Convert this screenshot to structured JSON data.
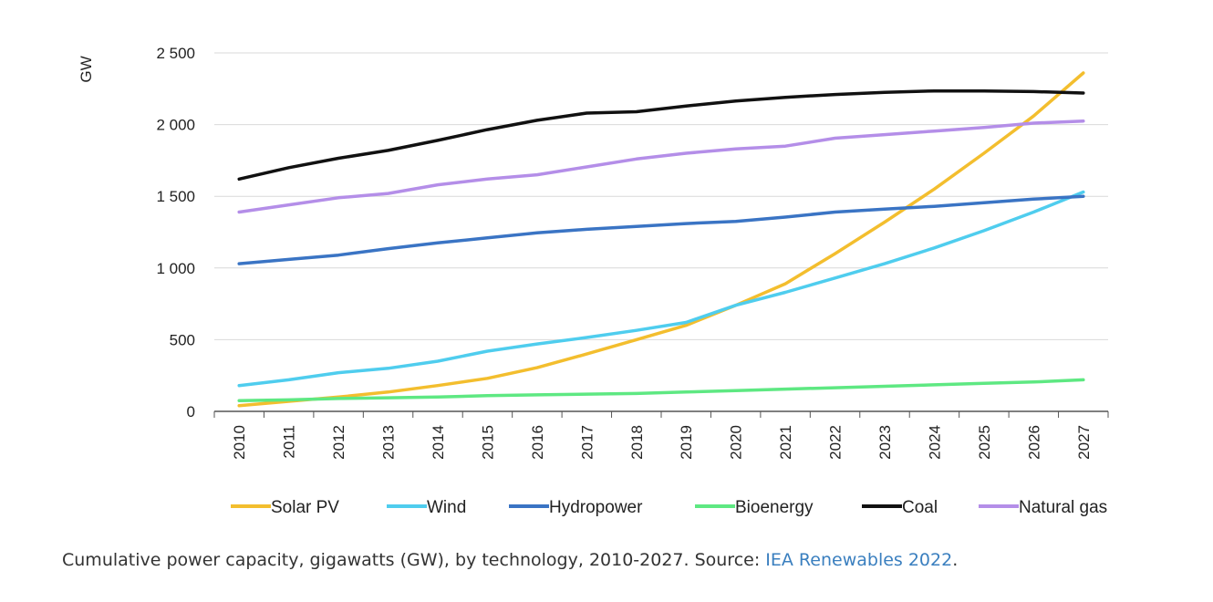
{
  "chart_data": {
    "type": "line",
    "ylabel": "GW",
    "ylim": [
      0,
      2500
    ],
    "yticks": [
      0,
      500,
      1000,
      1500,
      2000,
      2500
    ],
    "ytick_labels": [
      "0",
      "500",
      "1 000",
      "1 500",
      "2 000",
      "2 500"
    ],
    "x": [
      "2010",
      "2011",
      "2012",
      "2013",
      "2014",
      "2015",
      "2016",
      "2017",
      "2018",
      "2019",
      "2020",
      "2021",
      "2022",
      "2023",
      "2024",
      "2025",
      "2026",
      "2027"
    ],
    "grid": "horizontal",
    "legend_position": "bottom",
    "series": [
      {
        "name": "Solar PV",
        "color": "#f3be2e",
        "values": [
          40,
          70,
          100,
          135,
          180,
          230,
          305,
          400,
          500,
          600,
          740,
          890,
          1100,
          1320,
          1550,
          1800,
          2060,
          2360
        ]
      },
      {
        "name": "Wind",
        "color": "#4fcdee",
        "values": [
          180,
          220,
          270,
          300,
          350,
          420,
          470,
          515,
          565,
          620,
          740,
          830,
          930,
          1030,
          1140,
          1260,
          1390,
          1530
        ]
      },
      {
        "name": "Hydropower",
        "color": "#3a74c4",
        "values": [
          1030,
          1060,
          1090,
          1135,
          1175,
          1210,
          1245,
          1270,
          1290,
          1310,
          1325,
          1355,
          1390,
          1410,
          1430,
          1455,
          1480,
          1500
        ]
      },
      {
        "name": "Bioenergy",
        "color": "#5ee882",
        "values": [
          75,
          80,
          90,
          95,
          100,
          110,
          115,
          120,
          125,
          135,
          145,
          155,
          165,
          175,
          185,
          195,
          205,
          220
        ]
      },
      {
        "name": "Coal",
        "color": "#111111",
        "values": [
          1620,
          1700,
          1765,
          1820,
          1890,
          1965,
          2030,
          2080,
          2090,
          2130,
          2165,
          2190,
          2210,
          2225,
          2235,
          2235,
          2230,
          2220
        ]
      },
      {
        "name": "Natural gas",
        "color": "#b48ee8",
        "values": [
          1390,
          1440,
          1490,
          1520,
          1580,
          1620,
          1650,
          1705,
          1760,
          1800,
          1830,
          1850,
          1905,
          1930,
          1955,
          1980,
          2010,
          2025
        ]
      }
    ]
  },
  "caption": {
    "text": "Cumulative power capacity, gigawatts (GW), by technology, 2010-2027. Source: ",
    "link_text": "IEA Renewables 2022",
    "end": "."
  }
}
